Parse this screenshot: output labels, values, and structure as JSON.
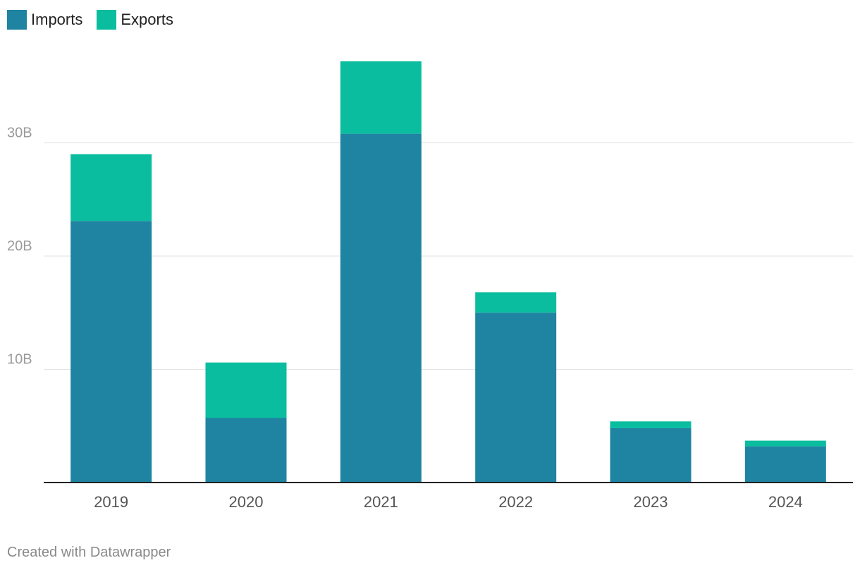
{
  "chart_data": {
    "type": "bar",
    "stacked": true,
    "categories": [
      "2019",
      "2020",
      "2021",
      "2022",
      "2023",
      "2024"
    ],
    "series": [
      {
        "name": "Imports",
        "values": [
          23.1,
          5.7,
          30.8,
          15.0,
          4.8,
          3.2
        ],
        "color": "#1f83a2"
      },
      {
        "name": "Exports",
        "values": [
          5.9,
          4.9,
          6.4,
          1.8,
          0.6,
          0.5
        ],
        "color": "#0bbd9f"
      }
    ],
    "title": "",
    "xlabel": "",
    "ylabel": "",
    "ylim": [
      0,
      38.5
    ],
    "yticks": [
      10,
      20,
      30
    ],
    "ytick_labels": [
      "10B",
      "20B",
      "30B"
    ],
    "grid": true,
    "legend_placement": "top-left"
  },
  "credit": "Created with Datawrapper"
}
